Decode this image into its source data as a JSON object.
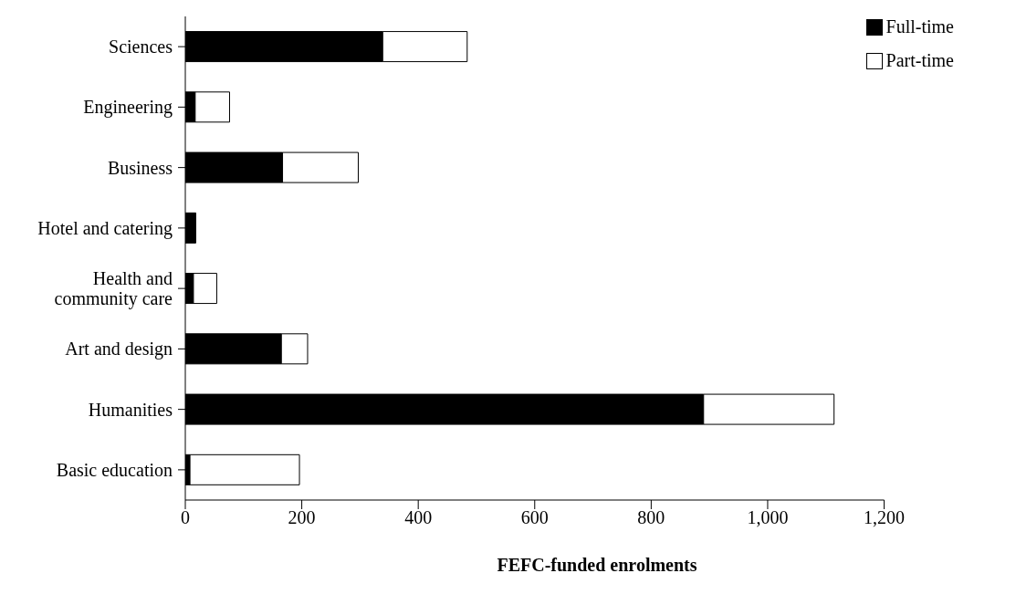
{
  "chart_data": {
    "type": "bar",
    "orientation": "horizontal",
    "stacked": true,
    "xlabel": "FEFC-funded enrolments",
    "categories": [
      "Sciences",
      "Engineering",
      "Business",
      "Hotel and catering",
      "Health and\ncommunity care",
      "Art and design",
      "Humanities",
      "Basic education"
    ],
    "series": [
      {
        "name": "Full-time",
        "color": "#000000",
        "values": [
          339,
          17,
          167,
          18,
          14,
          165,
          890,
          8
        ]
      },
      {
        "name": "Part-time",
        "color": "#ffffff",
        "values": [
          145,
          59,
          130,
          0,
          40,
          45,
          224,
          188
        ]
      }
    ],
    "xlim": [
      0,
      1200
    ],
    "xticks": [
      0,
      200,
      400,
      600,
      800,
      {
        "value": 1000,
        "label": "1,000"
      },
      {
        "value": 1200,
        "label": "1,200"
      }
    ],
    "grid": false,
    "legend": "top right"
  }
}
